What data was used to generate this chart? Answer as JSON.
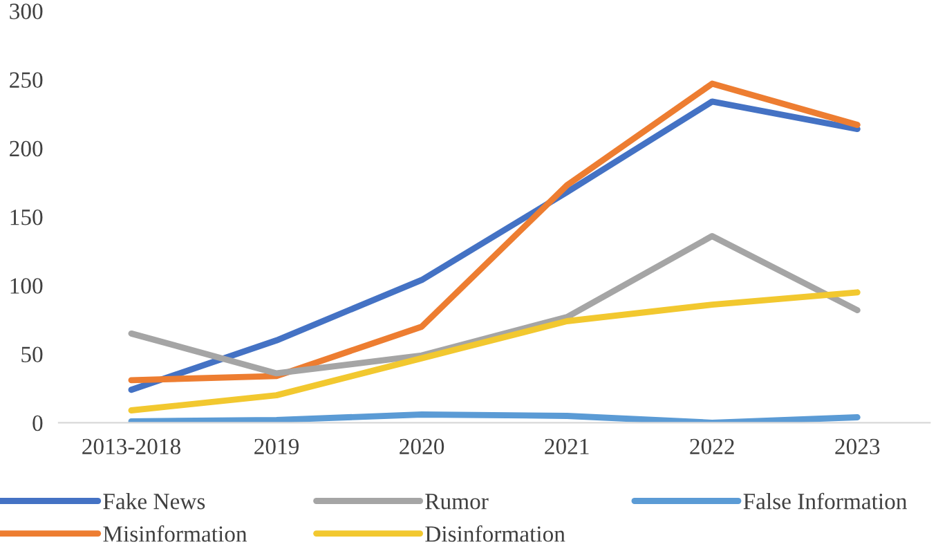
{
  "chart_data": {
    "type": "line",
    "categories": [
      "2013-2018",
      "2019",
      "2020",
      "2021",
      "2022",
      "2023"
    ],
    "series": [
      {
        "name": "Fake News",
        "color": "#4472c4",
        "values": [
          24,
          60,
          104,
          168,
          234,
          214
        ]
      },
      {
        "name": "Misinformation",
        "color": "#ed7d31",
        "values": [
          31,
          34,
          70,
          173,
          247,
          217
        ]
      },
      {
        "name": "Rumor",
        "color": "#a5a5a5",
        "values": [
          65,
          36,
          49,
          77,
          136,
          82
        ]
      },
      {
        "name": "Disinformation",
        "color": "#f2c82f",
        "values": [
          9,
          20,
          47,
          74,
          86,
          95
        ]
      },
      {
        "name": "False Information",
        "color": "#5b9bd5",
        "values": [
          1,
          2,
          6,
          5,
          0,
          4
        ]
      }
    ],
    "ylim": [
      0,
      300
    ],
    "yticks": [
      0,
      50,
      100,
      150,
      200,
      250,
      300
    ],
    "grid": false,
    "legend": "bottom",
    "marker": "none",
    "line_style": "solid"
  }
}
